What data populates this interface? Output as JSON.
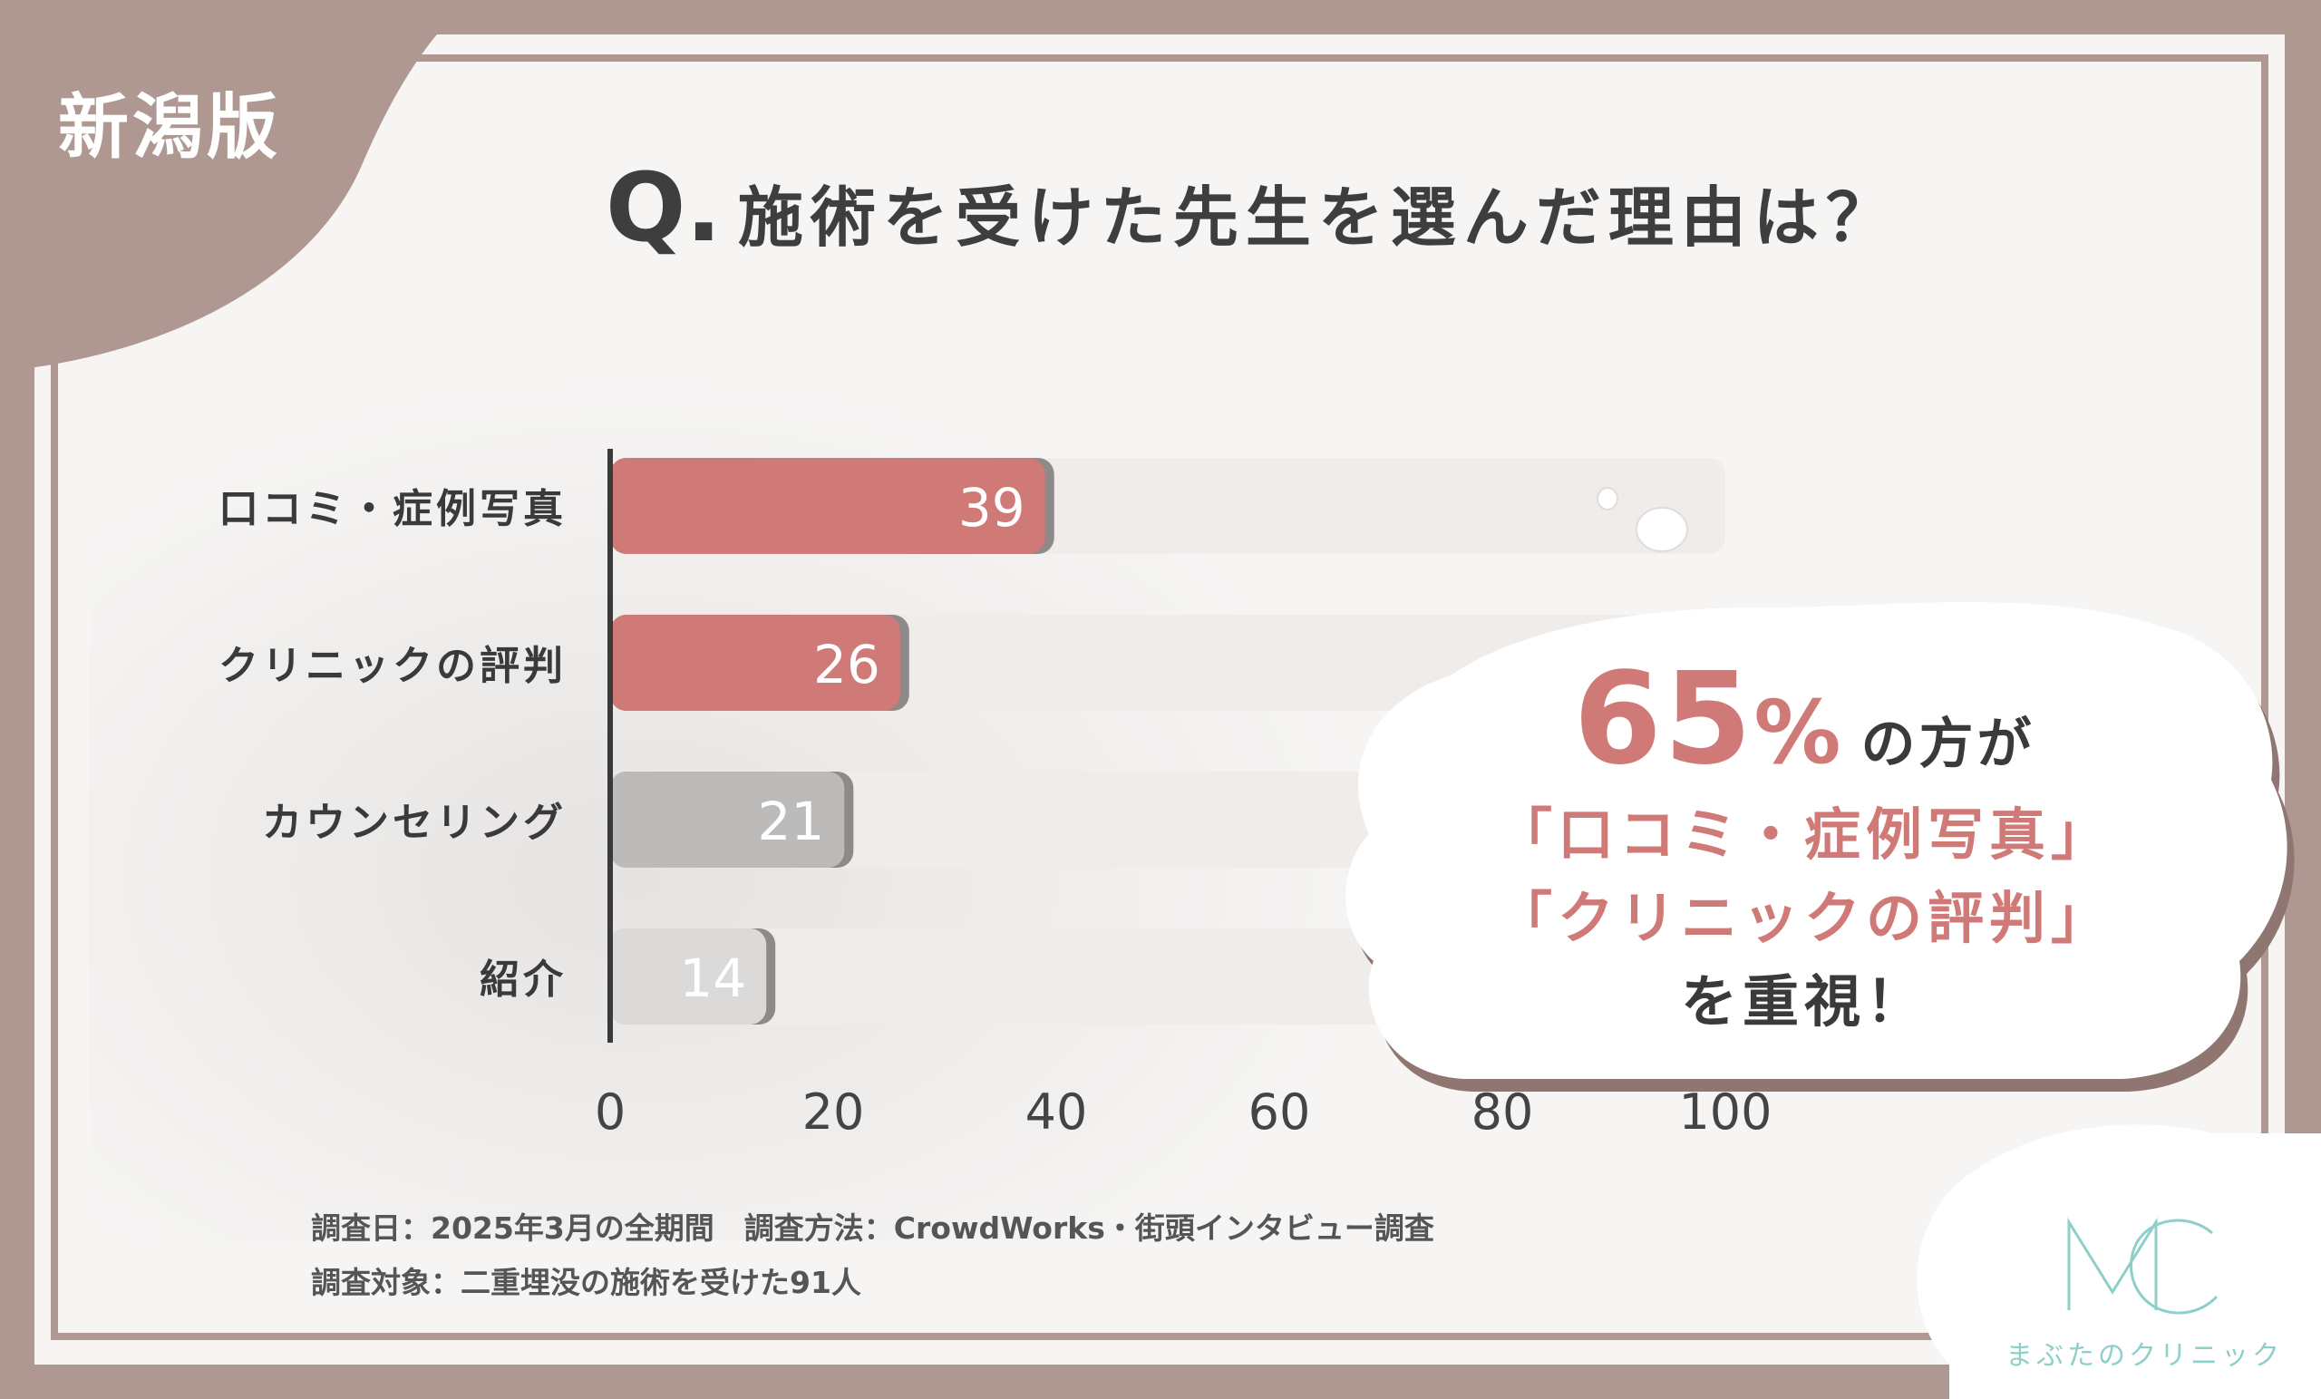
{
  "badge": "新潟版",
  "title": {
    "q": "Q.",
    "text": "施術を受けた先生を選んだ理由は？"
  },
  "chart_data": {
    "type": "bar",
    "orientation": "horizontal",
    "categories": [
      "口コミ・症例写真",
      "クリニックの評判",
      "カウンセリング",
      "紹介"
    ],
    "values": [
      39,
      26,
      21,
      14
    ],
    "bar_colors": [
      "#d07a78",
      "#d07a78",
      "#bdbbba",
      "#dcdad9"
    ],
    "xlim": [
      0,
      100
    ],
    "x_ticks": [
      0,
      20,
      40,
      60,
      80,
      100
    ],
    "grid": false
  },
  "callout": {
    "percent": "65",
    "percent_sign": "%",
    "suffix": "の方が",
    "line2": "「口コミ・症例写真」",
    "line3": "「クリニックの評判」",
    "line4": "を重視！"
  },
  "notes": {
    "line1": "調査日：2025年3月の全期間　調査方法：CrowdWorks・街頭インタビュー調査",
    "line2": "調査対象：二重埋没の施術を受けた91人"
  },
  "logo": {
    "mark": "MC",
    "name": "まぶたのクリニック"
  },
  "colors": {
    "frame": "#b09892",
    "accent": "#d07a78",
    "logo": "#8ecfca"
  }
}
